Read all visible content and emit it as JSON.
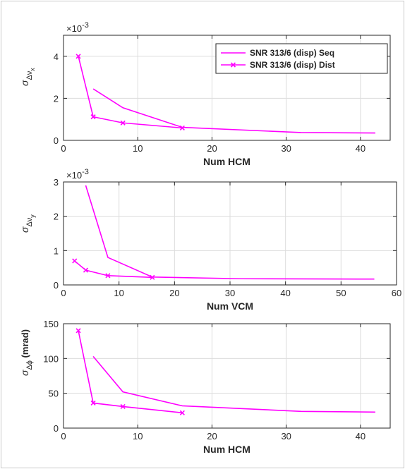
{
  "chart_data": [
    {
      "type": "line",
      "xlabel": "Num HCM",
      "ylabel": "σ_Δν_x",
      "xlim": [
        0,
        44
      ],
      "ylim": [
        0,
        0.005
      ],
      "xticks": [
        0,
        10,
        20,
        30,
        40
      ],
      "yticks": [
        0,
        2,
        4
      ],
      "y_scale_label": "×10 -3",
      "grid": true,
      "legend_position": "top-right",
      "color": "#ff00ff",
      "series": [
        {
          "name": "SNR 313/6 (disp) Seq",
          "marker": "none",
          "x": [
            4,
            8,
            16,
            32,
            42
          ],
          "y": [
            0.00245,
            0.00155,
            0.00062,
            0.00037,
            0.00035
          ]
        },
        {
          "name": "SNR 313/6 (disp) Dist",
          "marker": "x",
          "x": [
            2,
            4,
            8,
            16
          ],
          "y": [
            0.004,
            0.00112,
            0.00083,
            0.00059
          ]
        }
      ]
    },
    {
      "type": "line",
      "xlabel": "Num VCM",
      "ylabel": "σ_Δν_y",
      "xlim": [
        0,
        60
      ],
      "ylim": [
        0,
        0.003
      ],
      "xticks": [
        0,
        10,
        20,
        30,
        40,
        50,
        60
      ],
      "yticks": [
        0,
        1,
        2,
        3
      ],
      "y_scale_label": "×10 -3",
      "grid": true,
      "color": "#ff00ff",
      "series": [
        {
          "marker": "none",
          "x": [
            4,
            8,
            16,
            32,
            56
          ],
          "y": [
            0.0029,
            0.0008,
            0.00023,
            0.00018,
            0.00017
          ]
        },
        {
          "marker": "x",
          "x": [
            2,
            4,
            8,
            16
          ],
          "y": [
            0.0007,
            0.00043,
            0.00027,
            0.00022
          ]
        }
      ]
    },
    {
      "type": "line",
      "xlabel": "Num HCM",
      "ylabel": "σ_Δϕ (mrad)",
      "xlim": [
        0,
        44
      ],
      "ylim": [
        0,
        150
      ],
      "xticks": [
        0,
        10,
        20,
        30,
        40
      ],
      "yticks": [
        0,
        50,
        100,
        150
      ],
      "grid": true,
      "color": "#ff00ff",
      "series": [
        {
          "marker": "none",
          "x": [
            4,
            8,
            16,
            32,
            42
          ],
          "y": [
            103,
            52,
            32,
            24,
            23
          ]
        },
        {
          "marker": "x",
          "x": [
            2,
            4,
            8,
            16
          ],
          "y": [
            140,
            36,
            31,
            22
          ]
        }
      ]
    }
  ]
}
